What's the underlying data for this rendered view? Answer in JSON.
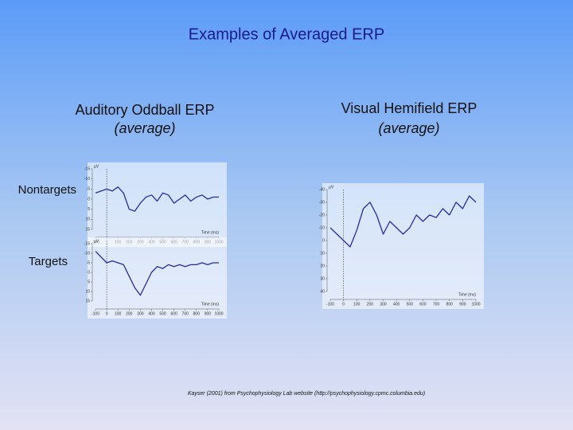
{
  "slide": {
    "title": "Examples of Averaged ERP",
    "left_title": "Auditory Oddball ERP",
    "left_subtitle": "(average)",
    "right_title": "Visual Hemifield ERP",
    "right_subtitle": "(average)",
    "row_labels": [
      "Nontargets",
      "Targets"
    ],
    "citation": "Kayser (2001) from Psychophysiology Lab website (http://psychophysiology.cpmc.columbia.edu)"
  },
  "chart_data": [
    {
      "type": "line",
      "y_label": "µV",
      "x_label": "Time (ms)",
      "color": "#2a2aa8",
      "x": [
        -100,
        -50,
        0,
        50,
        100,
        150,
        200,
        250,
        300,
        350,
        400,
        450,
        500,
        550,
        600,
        650,
        700,
        750,
        800,
        850,
        900,
        950,
        1000
      ],
      "values": [
        -3,
        -4,
        -5,
        -4,
        -6,
        -3,
        5,
        6,
        2,
        -1,
        -2,
        1,
        -3,
        -2,
        2,
        0,
        -2,
        1,
        -1,
        -2,
        0,
        -1,
        -1
      ],
      "xlim": [
        -100,
        1000
      ],
      "xticks": [
        -100,
        0,
        100,
        200,
        300,
        400,
        500,
        600,
        700,
        800,
        900,
        1000
      ],
      "ylim": [
        15,
        -15
      ],
      "yticks": [
        -15,
        -10,
        -5,
        0,
        5,
        10,
        15
      ]
    },
    {
      "type": "line",
      "y_label": "µV",
      "x_label": "Time (ms)",
      "color": "#2a2aa8",
      "x": [
        -100,
        -50,
        0,
        50,
        100,
        150,
        200,
        250,
        300,
        350,
        400,
        450,
        500,
        550,
        600,
        650,
        700,
        750,
        800,
        850,
        900,
        950,
        1000
      ],
      "values": [
        -11,
        -8,
        -5,
        -6,
        -5,
        -4,
        2,
        8,
        12,
        6,
        0,
        -3,
        -2,
        -4,
        -3,
        -4,
        -3,
        -4,
        -4,
        -5,
        -4,
        -5,
        -5
      ],
      "xlim": [
        -100,
        1000
      ],
      "xticks": [
        -100,
        0,
        100,
        200,
        300,
        400,
        500,
        600,
        700,
        800,
        900,
        1000
      ],
      "ylim": [
        15,
        -15
      ],
      "yticks": [
        -15,
        -10,
        -5,
        0,
        5,
        10,
        15
      ]
    },
    {
      "type": "line",
      "y_label": "µV",
      "x_label": "Time (ms)",
      "color": "#2a2aa8",
      "x": [
        -100,
        -50,
        0,
        50,
        100,
        150,
        200,
        250,
        300,
        350,
        400,
        450,
        500,
        550,
        600,
        650,
        700,
        750,
        800,
        850,
        900,
        950,
        1000
      ],
      "values": [
        -10,
        -5,
        0,
        5,
        -8,
        -25,
        -30,
        -20,
        -5,
        -15,
        -10,
        -5,
        -10,
        -20,
        -15,
        -20,
        -18,
        -25,
        -20,
        -30,
        -25,
        -35,
        -30
      ],
      "xlim": [
        -100,
        1000
      ],
      "xticks": [
        -100,
        0,
        100,
        200,
        300,
        400,
        500,
        600,
        700,
        800,
        900,
        1000
      ],
      "ylim": [
        40,
        -40
      ],
      "yticks": [
        -40,
        -30,
        -20,
        -10,
        0,
        10,
        20,
        30,
        40
      ]
    }
  ]
}
